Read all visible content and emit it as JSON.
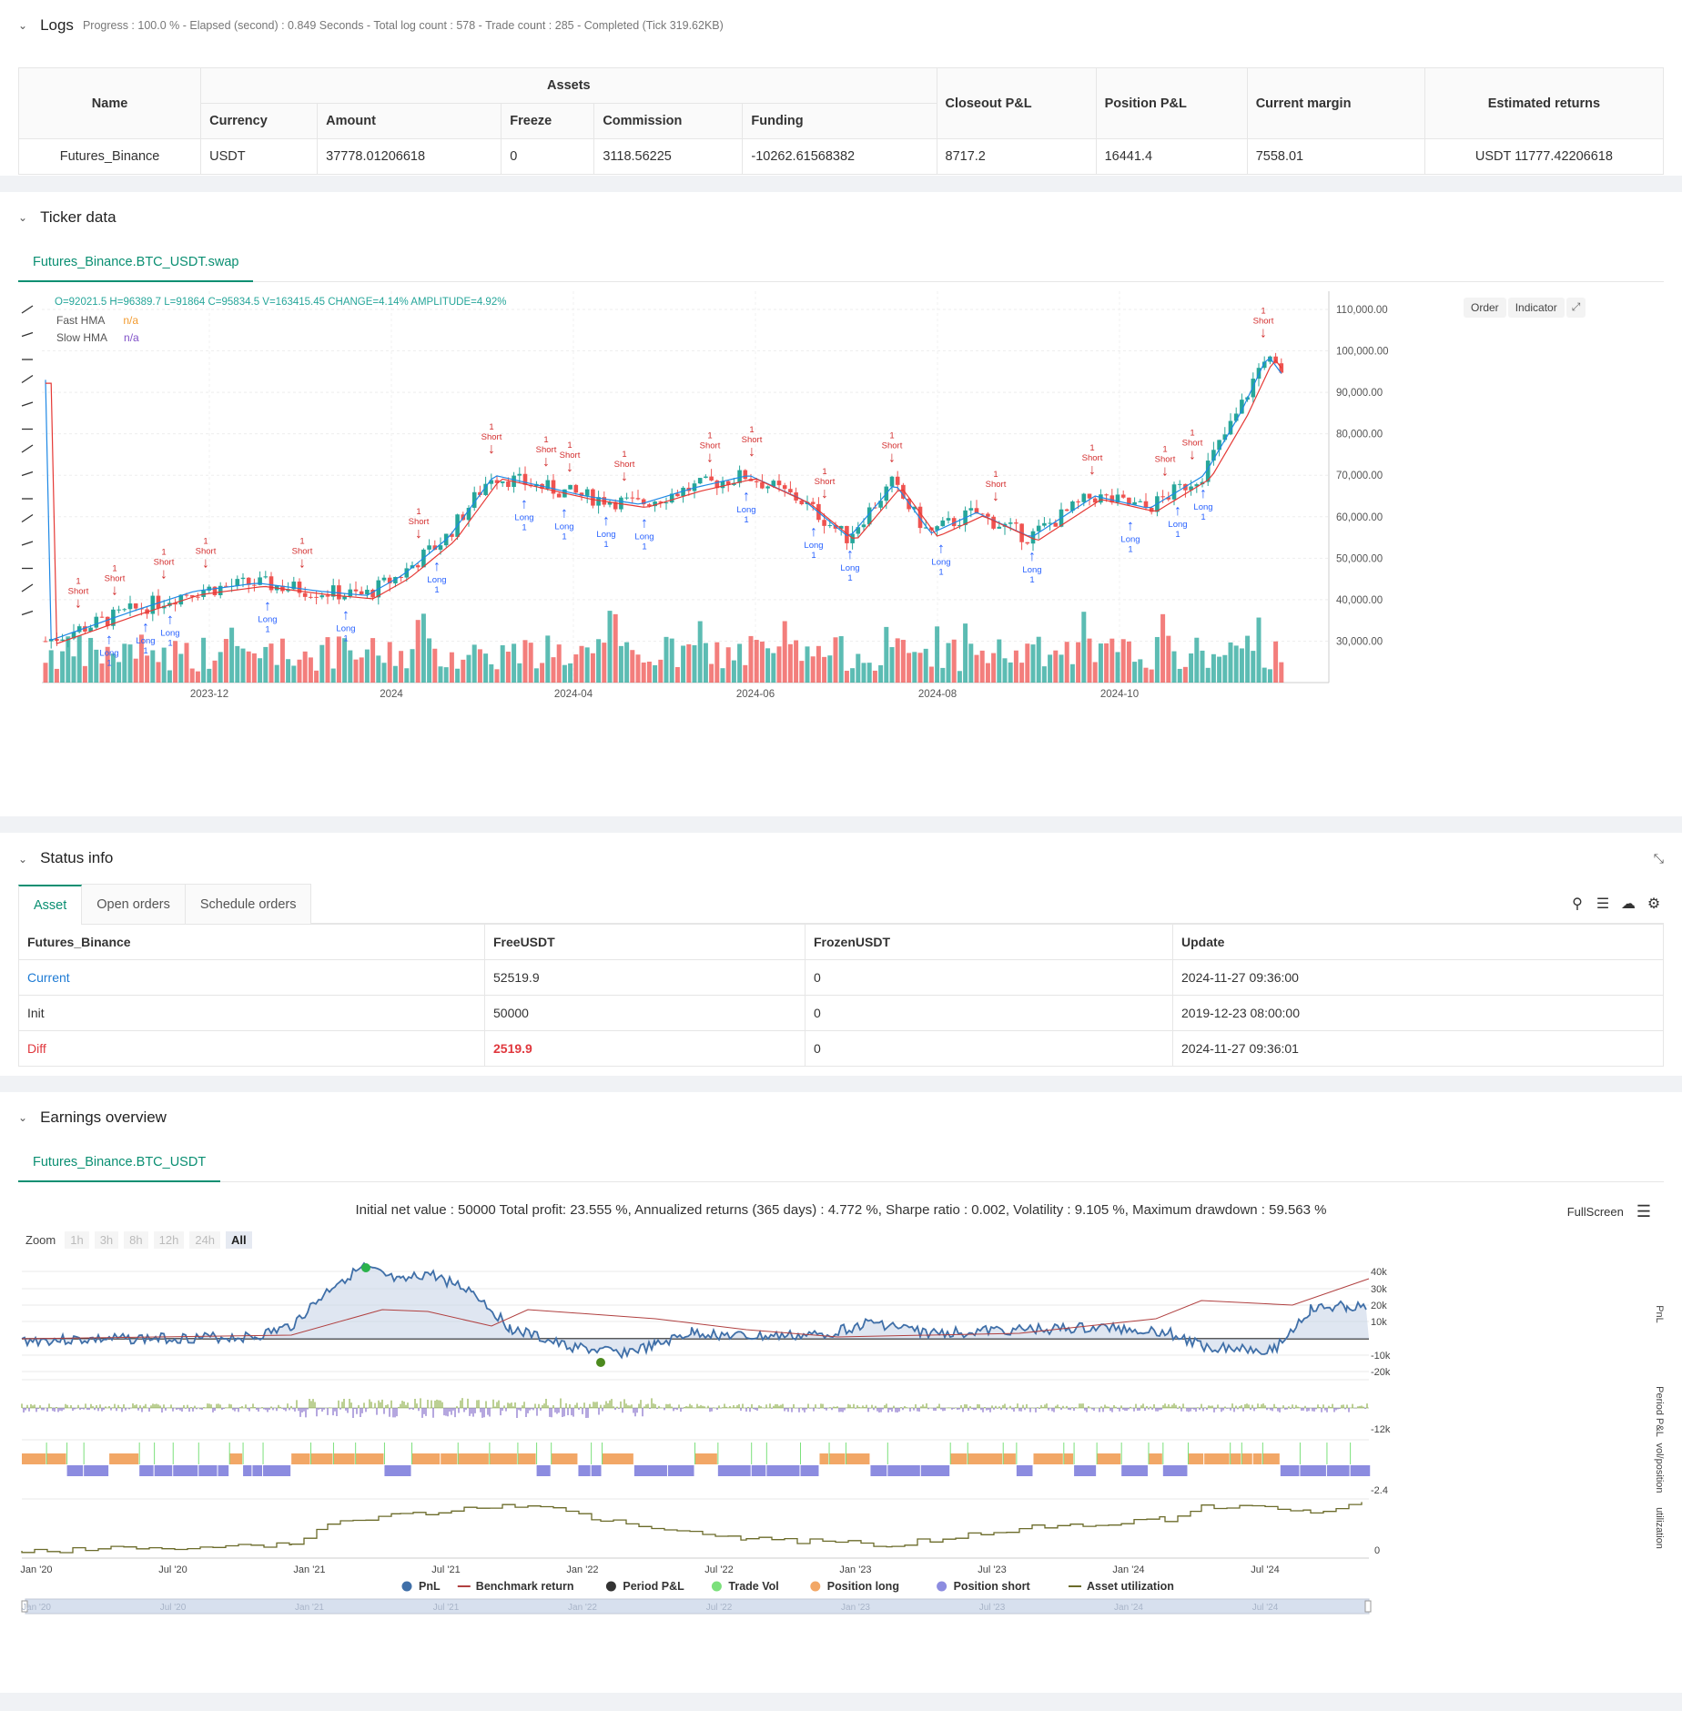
{
  "logs": {
    "title": "Logs",
    "meta": "Progress : 100.0 % - Elapsed (second) : 0.849  Seconds - Total log count : 578 - Trade count : 285 - Completed (Tick 319.62KB)",
    "table": {
      "name_header": "Name",
      "assets_header": "Assets",
      "sub_headers": [
        "Currency",
        "Amount",
        "Freeze",
        "Commission",
        "Funding"
      ],
      "right_headers": [
        "Closeout P&L",
        "Position P&L",
        "Current margin",
        "Estimated returns"
      ],
      "row": [
        "Futures_Binance",
        "USDT",
        "37778.01206618",
        "0",
        "3118.56225",
        "-10262.61568382",
        "8717.2",
        "16441.4",
        "7558.01",
        "USDT 11777.42206618"
      ]
    }
  },
  "ticker": {
    "title": "Ticker data",
    "tab": "Futures_Binance.BTC_USDT.swap",
    "ohlc": "O=92021.5 H=96389.7 L=91864 C=95834.5 V=163415.45 CHANGE=4.14% AMPLITUDE=4.92%",
    "fast_label": "Fast HMA",
    "fast_value": "n/a",
    "slow_label": "Slow HMA",
    "slow_value": "n/a",
    "buttons": [
      "Order",
      "Indicator"
    ],
    "y_ticks": [
      "110,000.00",
      "100,000.00",
      "90,000.00",
      "80,000.00",
      "70,000.00",
      "60,000.00",
      "50,000.00",
      "40,000.00",
      "30,000.00"
    ],
    "x_ticks": [
      "2023-12",
      "2024",
      "2024-04",
      "2024-06",
      "2024-08",
      "2024-10"
    ],
    "long_label": "Long",
    "short_label": "Short",
    "qty": "1"
  },
  "status": {
    "title": "Status info",
    "tabs": [
      "Asset",
      "Open orders",
      "Schedule orders"
    ],
    "headers": [
      "Futures_Binance",
      "FreeUSDT",
      "FrozenUSDT",
      "Update"
    ],
    "rows": [
      [
        "Current",
        "52519.9",
        "0",
        "2024-11-27 09:36:00"
      ],
      [
        "Init",
        "50000",
        "0",
        "2019-12-23 08:00:00"
      ],
      [
        "Diff",
        "2519.9",
        "0",
        "2024-11-27 09:36:01"
      ]
    ]
  },
  "earnings": {
    "title": "Earnings overview",
    "tab": "Futures_Binance.BTC_USDT",
    "summary": "Initial net value : 50000  Total profit: 23.555 %, Annualized returns (365 days) : 4.772 %, Sharpe ratio : 0.002, Volatility : 9.105 %, Maximum drawdown : 59.563 %",
    "fullscreen": "FullScreen",
    "zoom_label": "Zoom",
    "zoom_buttons": [
      "1h",
      "3h",
      "8h",
      "12h",
      "24h",
      "All"
    ],
    "pnl_ticks": [
      "40k",
      "30k",
      "20k",
      "10k",
      "-10k",
      "-20k"
    ],
    "pnl_axis": "PnL",
    "period_tick": "-12k",
    "period_axis": "Period P&L",
    "vol_tick": "-2.4",
    "vol_axis": "vol/position",
    "util_tick": "0",
    "util_axis": "utilization",
    "x_ticks": [
      "Jan '20",
      "Jul '20",
      "Jan '21",
      "Jul '21",
      "Jan '22",
      "Jul '22",
      "Jan '23",
      "Jul '23",
      "Jan '24",
      "Jul '24"
    ],
    "legend": [
      "PnL",
      "Benchmark return",
      "Period P&L",
      "Trade Vol",
      "Position long",
      "Position short",
      "Asset utilization"
    ],
    "legend_colors": [
      "#3f6fa8",
      "#b04040",
      "#333333",
      "#7be07b",
      "#f2a766",
      "#8c8ce0",
      "#6b6b2a"
    ]
  },
  "colors": {
    "up": "#26a69a",
    "down": "#ef5350",
    "accent": "#0a8f72"
  }
}
